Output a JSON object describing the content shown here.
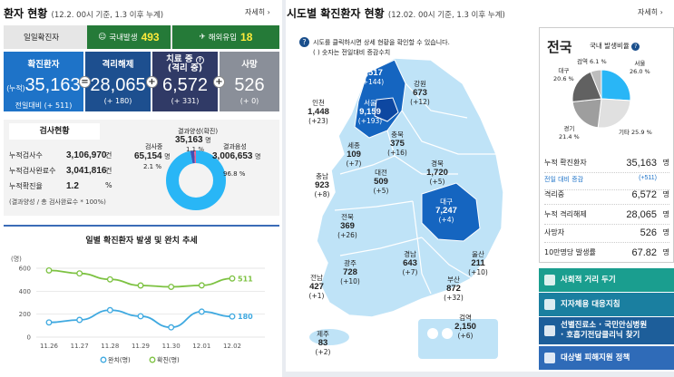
{
  "left": {
    "title": "환자 현황",
    "subtitle": "(12.2. 00시 기준, 1.3 이후 누계)",
    "more": "자세히",
    "daily_label": "일일확진자",
    "domestic_label": "국내발생",
    "domestic_value": "493",
    "overseas_label": "해외유입",
    "overseas_value": "18",
    "stats": {
      "confirmed": {
        "label": "확진환자",
        "prefix": "(누적)",
        "value": "35,163",
        "sub": "전일대비 (+ 511)",
        "color": "#1e73c8"
      },
      "released": {
        "label": "격리해제",
        "value": "28,065",
        "sub": "(+ 180)",
        "color": "#1d4f8f"
      },
      "treating": {
        "label": "치료 중",
        "label2": "(격리 중)",
        "value": "6,572",
        "sub": "(+ 331)",
        "color": "#303a66"
      },
      "deaths": {
        "label": "사망",
        "value": "526",
        "sub": "(+ 0)",
        "color": "#8a8f99"
      }
    },
    "operators": {
      "eq": "=",
      "plus1": "+",
      "plus2": "+"
    },
    "test": {
      "title": "검사현황",
      "rows": [
        {
          "label": "누적검사수",
          "value": "3,106,970",
          "unit": "건"
        },
        {
          "label": "누적검사완료수",
          "value": "3,041,816",
          "unit": "건"
        },
        {
          "label": "누적확진율",
          "value": "1.2",
          "unit": "%"
        }
      ],
      "note": "(결과양성 / 총 검사완료수 * 100%)",
      "donut": {
        "positive_label": "결과양성(확진)",
        "positive_value": "35,163",
        "positive_unit": "명",
        "positive_pct": "1.1 %",
        "testing_label": "검사중",
        "testing_value": "65,154",
        "testing_unit": "명",
        "testing_pct": "2.1 %",
        "negative_label": "결과음성",
        "negative_value": "3,006,653",
        "negative_unit": "명",
        "negative_pct": "96.8 %",
        "fractions": {
          "negative": 0.968,
          "testing": 0.021,
          "positive": 0.011
        },
        "colors": {
          "negative": "#29b6f6",
          "testing": "#3f51b5",
          "positive": "#f06292"
        }
      }
    },
    "chart_title": "일별 확진환자 발생 및 완치 추세",
    "chart_data": {
      "type": "line",
      "ylabel": "(명)",
      "ylim": [
        0,
        600
      ],
      "yticks": [
        "0",
        "200",
        "400",
        "600"
      ],
      "categories": [
        "11.26",
        "11.27",
        "11.28",
        "11.29",
        "11.30",
        "12.01",
        "12.02"
      ],
      "series": [
        {
          "name": "완치(명)",
          "values": [
            128,
            150,
            235,
            182,
            85,
            222,
            180
          ],
          "color": "#3fa9e0",
          "end_label": "180"
        },
        {
          "name": "확진(명)",
          "values": [
            581,
            555,
            503,
            450,
            438,
            451,
            511
          ],
          "color": "#7dc242",
          "end_label": "511"
        }
      ]
    }
  },
  "right": {
    "title": "시도별 확진환자 현황",
    "subtitle": "(12.02. 00시 기준, 1.3 이후 누계)",
    "more": "자세히",
    "hint1": "시도를 클릭하시면 상세 현황을 확인할 수 있습니다.",
    "hint2": "( ) 숫자는 전일대비 증감수치",
    "regions": [
      {
        "name": "경기",
        "value": "7,517",
        "delta": "(+144)"
      },
      {
        "name": "강원",
        "value": "673",
        "delta": "(+12)"
      },
      {
        "name": "인천",
        "value": "1,448",
        "delta": "(+23)"
      },
      {
        "name": "서울",
        "value": "9,159",
        "delta": "(+193)"
      },
      {
        "name": "충북",
        "value": "375",
        "delta": "(+16)"
      },
      {
        "name": "세종",
        "value": "109",
        "delta": "(+7)"
      },
      {
        "name": "충남",
        "value": "923",
        "delta": "(+8)"
      },
      {
        "name": "대전",
        "value": "509",
        "delta": "(+5)"
      },
      {
        "name": "경북",
        "value": "1,720",
        "delta": "(+5)"
      },
      {
        "name": "전북",
        "value": "369",
        "delta": "(+26)"
      },
      {
        "name": "대구",
        "value": "7,247",
        "delta": "(+4)"
      },
      {
        "name": "광주",
        "value": "728",
        "delta": "(+10)"
      },
      {
        "name": "경남",
        "value": "643",
        "delta": "(+7)"
      },
      {
        "name": "울산",
        "value": "211",
        "delta": "(+10)"
      },
      {
        "name": "전남",
        "value": "427",
        "delta": "(+1)"
      },
      {
        "name": "부산",
        "value": "872",
        "delta": "(+32)"
      },
      {
        "name": "검역",
        "value": "2,150",
        "delta": "(+6)"
      },
      {
        "name": "제주",
        "value": "83",
        "delta": "(+2)"
      }
    ],
    "side": {
      "title": "전국",
      "ratio_label": "국내 발생비율",
      "pie": {
        "type": "pie",
        "slices": [
          {
            "label": "서울",
            "pct": "26.0 %",
            "value": 26.0,
            "color": "#29b6f6"
          },
          {
            "label": "기타",
            "pct": "25.9 %",
            "value": 25.9,
            "color": "#e0e0e0"
          },
          {
            "label": "경기",
            "pct": "21.4 %",
            "value": 21.4,
            "color": "#9e9e9e"
          },
          {
            "label": "대구",
            "pct": "20.6 %",
            "value": 20.6,
            "color": "#616161"
          },
          {
            "label": "검역",
            "pct": "6.1 %",
            "value": 6.1,
            "color": "#bdbdbd"
          }
        ]
      },
      "rows": [
        {
          "label": "누적 확진환자",
          "value": "35,163",
          "unit": "명"
        },
        {
          "label": "전일 대비 증감",
          "value": "(+511)",
          "unit": ""
        },
        {
          "label": "격리중",
          "value": "6,572",
          "unit": "명"
        },
        {
          "label": "누적 격리해제",
          "value": "28,065",
          "unit": "명"
        },
        {
          "label": "사망자",
          "value": "526",
          "unit": "명"
        },
        {
          "label": "10만명당 발생률",
          "value": "67.82",
          "unit": "명"
        }
      ],
      "buttons": [
        {
          "label": "사회적 거리 두기",
          "color": "#1a9e8f"
        },
        {
          "label": "지자체용 대응지침",
          "color": "#1a7fa0"
        },
        {
          "label": "선별진료소 · 국민안심병원",
          "label2": "· 호흡기전담클리닉 찾기",
          "color": "#1d5e9a"
        },
        {
          "label": "대상별 피해지원 정책",
          "color": "#2f6bb8"
        }
      ]
    }
  }
}
